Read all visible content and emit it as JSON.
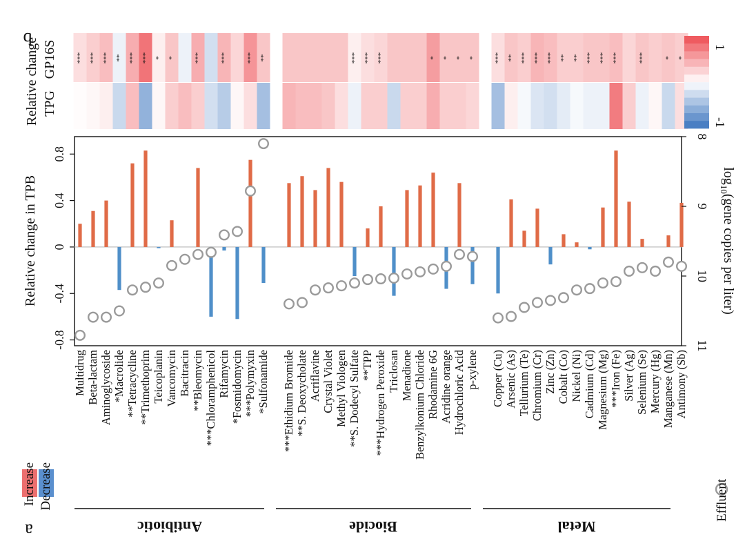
{
  "panel_labels": {
    "a": "a",
    "b": "b"
  },
  "colors": {
    "increase": "#e06b47",
    "decrease": "#4f8fc9",
    "marker_stroke": "#9a9a9a",
    "heat_pos": "#ef5b60",
    "heat_neg": "#4a7fc3",
    "legend_increase": "#ec6f6f",
    "legend_decrease": "#5a8fce"
  },
  "heatmap_legend": {
    "max_label": "1",
    "min_label": "-1"
  },
  "heatmap_rows": {
    "title": "Relative change",
    "row1": "GP16S",
    "row2": "TPG"
  },
  "legend": {
    "increase": "Increase",
    "decrease": "Decrease",
    "effluent": "Effluent"
  },
  "groups": [
    "Antibiotic",
    "Biocide",
    "Metal"
  ],
  "chart_data": {
    "type": "bar",
    "title": "",
    "ylabel": "Relative change in TPB",
    "ylim": [
      -0.85,
      0.95
    ],
    "yticks": [
      -0.8,
      -0.4,
      0,
      0.4,
      0.8
    ],
    "ytick_labels": [
      "-0.8",
      "-0.4",
      "0",
      "0.4",
      "0.8"
    ],
    "y2label_main": "log",
    "y2label_sub": "10",
    "y2label_rest": "(gene copies per liter)",
    "y2lim": [
      11,
      8
    ],
    "y2ticks": [
      11,
      10,
      9,
      8
    ],
    "y2tick_labels": [
      "11",
      "10",
      "9",
      "8"
    ],
    "categories": [
      {
        "name": "Multidrug",
        "group": 0,
        "tpb": 0.2,
        "effluent": 10.85,
        "gp16s": 0.2,
        "tpg": 0.02,
        "gp16s_sig": "***"
      },
      {
        "name": "Beta-lactam",
        "group": 0,
        "tpb": 0.31,
        "effluent": 10.59,
        "gp16s": 0.3,
        "tpg": 0.05,
        "gp16s_sig": "***"
      },
      {
        "name": "Aminoglycoside",
        "group": 0,
        "tpb": 0.4,
        "effluent": 10.59,
        "gp16s": 0.4,
        "tpg": 0.1,
        "gp16s_sig": "***"
      },
      {
        "name": "*Macrolide",
        "group": 0,
        "tpb": -0.37,
        "effluent": 10.5,
        "gp16s": -0.1,
        "tpg": -0.3,
        "gp16s_sig": "**"
      },
      {
        "name": "**Tetracycline",
        "group": 0,
        "tpb": 0.72,
        "effluent": 10.2,
        "gp16s": 0.5,
        "tpg": 0.4,
        "gp16s_sig": "***"
      },
      {
        "name": "**Trimethoprim",
        "group": 0,
        "tpb": 0.83,
        "effluent": 10.16,
        "gp16s": 0.85,
        "tpg": -0.6,
        "gp16s_sig": "***"
      },
      {
        "name": "Teicoplanin",
        "group": 0,
        "tpb": -0.01,
        "effluent": 10.1,
        "gp16s": 0.1,
        "tpg": 0.05,
        "gp16s_sig": "*"
      },
      {
        "name": "Vancomycin",
        "group": 0,
        "tpb": 0.23,
        "effluent": 9.85,
        "gp16s": 0.35,
        "tpg": 0.3,
        "gp16s_sig": "*"
      },
      {
        "name": "Bacitracin",
        "group": 0,
        "tpb": 0.0,
        "effluent": 9.76,
        "gp16s": -0.1,
        "tpg": 0.4,
        "gp16s_sig": ""
      },
      {
        "name": "**Bleomycin",
        "group": 0,
        "tpb": 0.68,
        "effluent": 9.69,
        "gp16s": 0.5,
        "tpg": 0.3,
        "gp16s_sig": "***"
      },
      {
        "name": "***Chloramphenicol",
        "group": 0,
        "tpb": -0.6,
        "effluent": 9.66,
        "gp16s": -0.25,
        "tpg": -0.25,
        "gp16s_sig": ""
      },
      {
        "name": "Rifamycin",
        "group": 0,
        "tpb": -0.03,
        "effluent": 9.41,
        "gp16s": 0.45,
        "tpg": -0.4,
        "gp16s_sig": "***"
      },
      {
        "name": "*Fosmidomycin",
        "group": 0,
        "tpb": -0.62,
        "effluent": 9.36,
        "gp16s": 0.25,
        "tpg": 0.05,
        "gp16s_sig": ""
      },
      {
        "name": "***Polymyxin",
        "group": 0,
        "tpb": 0.75,
        "effluent": 8.78,
        "gp16s": 0.65,
        "tpg": 0.2,
        "gp16s_sig": "***"
      },
      {
        "name": "*Sulfonamide",
        "group": 0,
        "tpb": -0.31,
        "effluent": 8.1,
        "gp16s": 0.35,
        "tpg": -0.5,
        "gp16s_sig": "**"
      },
      {
        "name": "***Ethidium Bromide",
        "group": 1,
        "tpb": 0.55,
        "effluent": 10.4,
        "gp16s": 0.35,
        "tpg": 0.45,
        "gp16s_sig": ""
      },
      {
        "name": "**S. Deoxycholate",
        "group": 1,
        "tpb": 0.61,
        "effluent": 10.38,
        "gp16s": 0.35,
        "tpg": 0.4,
        "gp16s_sig": ""
      },
      {
        "name": "Acriflavine",
        "group": 1,
        "tpb": 0.49,
        "effluent": 10.2,
        "gp16s": 0.35,
        "tpg": 0.4,
        "gp16s_sig": ""
      },
      {
        "name": "Crystal Violet",
        "group": 1,
        "tpb": 0.68,
        "effluent": 10.17,
        "gp16s": 0.35,
        "tpg": 0.35,
        "gp16s_sig": ""
      },
      {
        "name": "Methyl Viologen",
        "group": 1,
        "tpb": 0.56,
        "effluent": 10.14,
        "gp16s": 0.35,
        "tpg": 0.2,
        "gp16s_sig": ""
      },
      {
        "name": "**S. Dodecyl Sulfate",
        "group": 1,
        "tpb": -0.25,
        "effluent": 10.1,
        "gp16s": 0.1,
        "tpg": -0.1,
        "gp16s_sig": "***"
      },
      {
        "name": "**TPP",
        "group": 1,
        "tpb": 0.16,
        "effluent": 10.05,
        "gp16s": 0.2,
        "tpg": 0.3,
        "gp16s_sig": "***"
      },
      {
        "name": "***Hydrogen Peroxide",
        "group": 1,
        "tpb": 0.35,
        "effluent": 10.04,
        "gp16s": 0.25,
        "tpg": 0.3,
        "gp16s_sig": "***"
      },
      {
        "name": "Triclosan",
        "group": 1,
        "tpb": -0.42,
        "effluent": 10.03,
        "gp16s": 0.35,
        "tpg": -0.3,
        "gp16s_sig": ""
      },
      {
        "name": "Menadione",
        "group": 1,
        "tpb": 0.49,
        "effluent": 9.97,
        "gp16s": 0.35,
        "tpg": 0.3,
        "gp16s_sig": ""
      },
      {
        "name": "Benzylkonium Chloride",
        "group": 1,
        "tpb": 0.53,
        "effluent": 9.94,
        "gp16s": 0.35,
        "tpg": 0.3,
        "gp16s_sig": ""
      },
      {
        "name": "Rhodamine 6G",
        "group": 1,
        "tpb": 0.64,
        "effluent": 9.9,
        "gp16s": 0.6,
        "tpg": 0.5,
        "gp16s_sig": "*"
      },
      {
        "name": "Acridine orange",
        "group": 1,
        "tpb": -0.36,
        "effluent": 9.86,
        "gp16s": 0.35,
        "tpg": 0.3,
        "gp16s_sig": "*"
      },
      {
        "name": "Hydrochloric Acid",
        "group": 1,
        "tpb": 0.55,
        "effluent": 9.69,
        "gp16s": 0.35,
        "tpg": 0.3,
        "gp16s_sig": "*"
      },
      {
        "name": "p-xylene",
        "group": 1,
        "tpb": -0.32,
        "effluent": 9.72,
        "gp16s": 0.35,
        "tpg": 0.25,
        "gp16s_sig": "*"
      },
      {
        "name": "Copper (Cu)",
        "group": 2,
        "tpb": -0.4,
        "effluent": 10.6,
        "gp16s": 0.2,
        "tpg": -0.5,
        "gp16s_sig": "***"
      },
      {
        "name": "Arsenic (As)",
        "group": 2,
        "tpb": 0.41,
        "effluent": 10.58,
        "gp16s": 0.35,
        "tpg": 0.1,
        "gp16s_sig": "**"
      },
      {
        "name": "Tellurium (Te)",
        "group": 2,
        "tpb": 0.14,
        "effluent": 10.45,
        "gp16s": 0.3,
        "tpg": -0.05,
        "gp16s_sig": "***"
      },
      {
        "name": "Chromium (Cr)",
        "group": 2,
        "tpb": 0.33,
        "effluent": 10.38,
        "gp16s": 0.45,
        "tpg": -0.2,
        "gp16s_sig": "***"
      },
      {
        "name": "Zinc (Zn)",
        "group": 2,
        "tpb": -0.15,
        "effluent": 10.35,
        "gp16s": 0.4,
        "tpg": -0.25,
        "gp16s_sig": "***"
      },
      {
        "name": "Cobalt (Co)",
        "group": 2,
        "tpb": 0.11,
        "effluent": 10.31,
        "gp16s": 0.3,
        "tpg": -0.15,
        "gp16s_sig": "**"
      },
      {
        "name": "Nickel (Ni)",
        "group": 2,
        "tpb": 0.04,
        "effluent": 10.2,
        "gp16s": 0.3,
        "tpg": -0.05,
        "gp16s_sig": "**"
      },
      {
        "name": "Cadmium (Cd)",
        "group": 2,
        "tpb": -0.02,
        "effluent": 10.18,
        "gp16s": 0.35,
        "tpg": -0.1,
        "gp16s_sig": "***"
      },
      {
        "name": "Magnesium (Mg)",
        "group": 2,
        "tpb": 0.34,
        "effluent": 10.1,
        "gp16s": 0.35,
        "tpg": -0.1,
        "gp16s_sig": "***"
      },
      {
        "name": "***Iron (Fe)",
        "group": 2,
        "tpb": 0.83,
        "effluent": 10.08,
        "gp16s": 0.4,
        "tpg": 0.8,
        "gp16s_sig": "***"
      },
      {
        "name": "Silver (Ag)",
        "group": 2,
        "tpb": 0.39,
        "effluent": 9.93,
        "gp16s": 0.25,
        "tpg": 0.3,
        "gp16s_sig": ""
      },
      {
        "name": "Selenium (Se)",
        "group": 2,
        "tpb": 0.07,
        "effluent": 9.88,
        "gp16s": 0.35,
        "tpg": -0.1,
        "gp16s_sig": "***"
      },
      {
        "name": "Mercury (Hg)",
        "group": 2,
        "tpb": 0.0,
        "effluent": 9.93,
        "gp16s": 0.3,
        "tpg": 0.05,
        "gp16s_sig": ""
      },
      {
        "name": "Manganese (Mn)",
        "group": 2,
        "tpb": 0.1,
        "effluent": 9.8,
        "gp16s": 0.35,
        "tpg": -0.3,
        "gp16s_sig": "*"
      },
      {
        "name": "Antimony (Sb)",
        "group": 2,
        "tpb": 0.38,
        "effluent": 9.86,
        "gp16s": 0.3,
        "tpg": 0.2,
        "gp16s_sig": "*"
      }
    ]
  }
}
